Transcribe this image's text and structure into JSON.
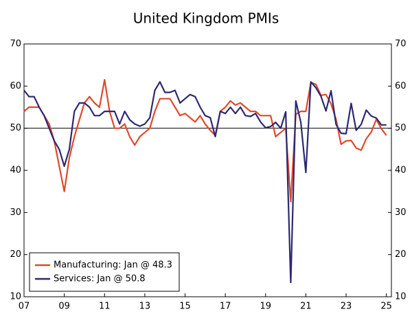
{
  "chart_data": {
    "type": "line",
    "title": "United Kingdom PMIs",
    "x": [
      2007,
      2007.25,
      2007.5,
      2007.75,
      2008,
      2008.25,
      2008.5,
      2008.75,
      2009,
      2009.25,
      2009.5,
      2009.75,
      2010,
      2010.25,
      2010.5,
      2010.75,
      2011,
      2011.25,
      2011.5,
      2011.75,
      2012,
      2012.25,
      2012.5,
      2012.75,
      2013,
      2013.25,
      2013.5,
      2013.75,
      2014,
      2014.25,
      2014.5,
      2014.75,
      2015,
      2015.25,
      2015.5,
      2015.75,
      2016,
      2016.25,
      2016.5,
      2016.75,
      2017,
      2017.25,
      2017.5,
      2017.75,
      2018,
      2018.25,
      2018.5,
      2018.75,
      2019,
      2019.25,
      2019.5,
      2019.75,
      2020,
      2020.25,
      2020.5,
      2020.75,
      2021,
      2021.25,
      2021.5,
      2021.75,
      2022,
      2022.25,
      2022.5,
      2022.75,
      2023,
      2023.25,
      2023.5,
      2023.75,
      2024,
      2024.25,
      2024.5,
      2024.75,
      2025
    ],
    "series": [
      {
        "name": "Manufacturing: Jan @ 48.3",
        "color": "#e0482a",
        "values": [
          54,
          55,
          55,
          55,
          53,
          51,
          47,
          41,
          35,
          43,
          48,
          52,
          56,
          57.5,
          56,
          55,
          61.5,
          54,
          50,
          50,
          51,
          48,
          46,
          48,
          49,
          50,
          54,
          57,
          57,
          57,
          55,
          53,
          53.5,
          52.5,
          51.5,
          53,
          51,
          49.5,
          48.3,
          54,
          55,
          56.5,
          55.5,
          56,
          55,
          54,
          54,
          53,
          53,
          53,
          48,
          49,
          50,
          32.6,
          53.3,
          54,
          54,
          60.9,
          60.4,
          57.8,
          58,
          55.8,
          52.1,
          46.2,
          47,
          47.1,
          45.3,
          44.8,
          47.5,
          49.1,
          52.1,
          49.9,
          48.3
        ]
      },
      {
        "name": "Services: Jan @ 50.8",
        "color": "#2b2870",
        "values": [
          59,
          57.5,
          57.5,
          55,
          53,
          50,
          47,
          45,
          41,
          45,
          54,
          56,
          56,
          55,
          53,
          53,
          54,
          54,
          54,
          51,
          54,
          52,
          51,
          50.5,
          51,
          52.5,
          59,
          61,
          58.5,
          58.5,
          59,
          56,
          57,
          58,
          57.5,
          55,
          53,
          52.5,
          48,
          54,
          53.5,
          55,
          53.5,
          55,
          53,
          52.8,
          53.5,
          51.5,
          50.1,
          50.4,
          51.4,
          50,
          53.9,
          13.4,
          56.5,
          51.4,
          39.5,
          61,
          59.6,
          57.6,
          54.1,
          58.9,
          50.9,
          48.8,
          48.7,
          55.9,
          49.5,
          50.9,
          54.3,
          52.9,
          52.4,
          50.8,
          50.8
        ]
      }
    ],
    "xlim": [
      2007,
      2025.25
    ],
    "xticks": [
      {
        "value": 2007,
        "label": "07"
      },
      {
        "value": 2009,
        "label": "09"
      },
      {
        "value": 2011,
        "label": "11"
      },
      {
        "value": 2013,
        "label": "13"
      },
      {
        "value": 2015,
        "label": "15"
      },
      {
        "value": 2017,
        "label": "17"
      },
      {
        "value": 2019,
        "label": "19"
      },
      {
        "value": 2021,
        "label": "21"
      },
      {
        "value": 2023,
        "label": "23"
      },
      {
        "value": 2025,
        "label": "25"
      }
    ],
    "ylim": [
      10,
      70
    ],
    "yticks": [
      10,
      20,
      30,
      40,
      50,
      60,
      70
    ],
    "y2lim": [
      10,
      70
    ],
    "y2ticks": [
      10,
      20,
      30,
      40,
      50,
      60,
      70
    ],
    "reference_line": 50,
    "legend": "lower left"
  }
}
